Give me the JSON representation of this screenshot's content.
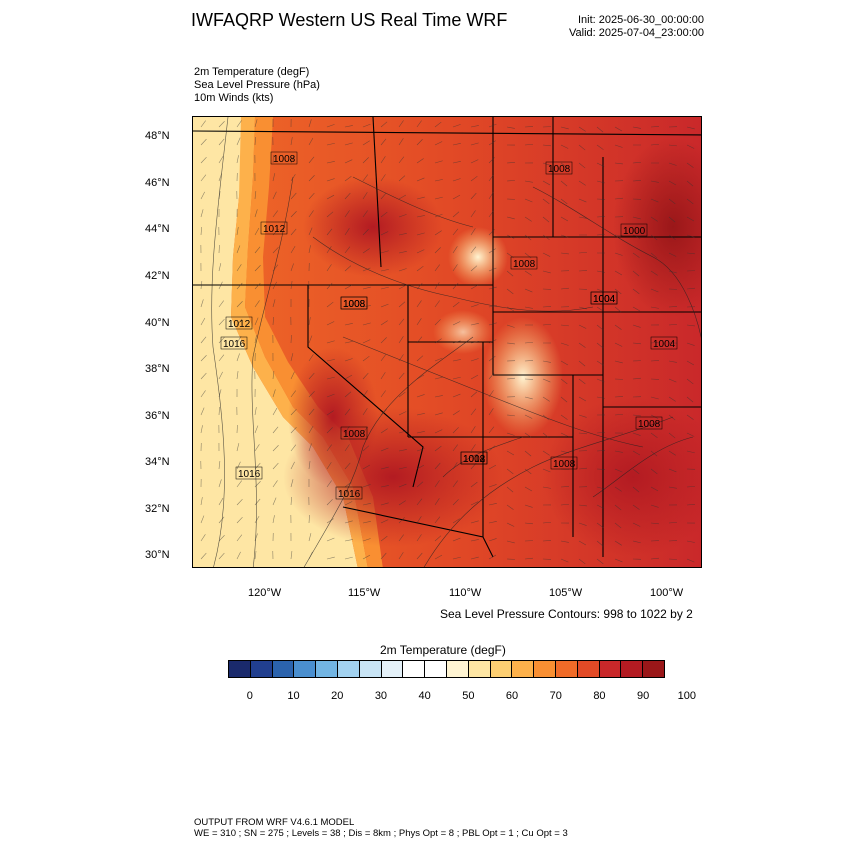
{
  "header": {
    "title": "IWFAQRP Western US Real Time WRF",
    "init": "Init: 2025-06-30_00:00:00",
    "valid": "Valid: 2025-07-04_23:00:00"
  },
  "fields": [
    "2m Temperature   (degF)",
    "Sea Level Pressure   (hPa)",
    "10m Winds   (kts)"
  ],
  "map": {
    "lat_labels": [
      "48°N",
      "46°N",
      "44°N",
      "42°N",
      "40°N",
      "38°N",
      "36°N",
      "34°N",
      "32°N",
      "30°N"
    ],
    "lon_labels": [
      "120°W",
      "115°W",
      "110°W",
      "105°W",
      "100°W"
    ],
    "pressure_labels": [
      "1008",
      "1012",
      "1016",
      "1016",
      "1012",
      "1008",
      "1008",
      "1004",
      "1004",
      "1008",
      "1008",
      "1008",
      "1012",
      "1008",
      "1008",
      "1016",
      "1000",
      "1008",
      "1004"
    ]
  },
  "contour_note": "Sea Level Pressure Contours: 998 to 1022 by 2",
  "colorbar": {
    "title": "2m Temperature  (degF)",
    "labels": [
      "0",
      "10",
      "20",
      "30",
      "40",
      "50",
      "60",
      "70",
      "80",
      "90",
      "100"
    ],
    "colors": [
      "#1a2a6c",
      "#213f8f",
      "#2b63ad",
      "#4a8fcf",
      "#72b5e3",
      "#a2d2f0",
      "#c8e4f5",
      "#e4f1f9",
      "#ffffff",
      "#ffffff",
      "#fff4d2",
      "#fee6a4",
      "#fdcf72",
      "#fdb14b",
      "#f98f32",
      "#f06b28",
      "#e24a26",
      "#c9282a",
      "#b31b22",
      "#9a1719"
    ]
  },
  "footer": {
    "line1": "OUTPUT FROM WRF V4.6.1 MODEL",
    "line2": "WE = 310 ; SN = 275 ; Levels = 38 ; Dis = 8km ; Phys Opt = 8 ; PBL Opt = 1 ; Cu Opt = 3"
  }
}
